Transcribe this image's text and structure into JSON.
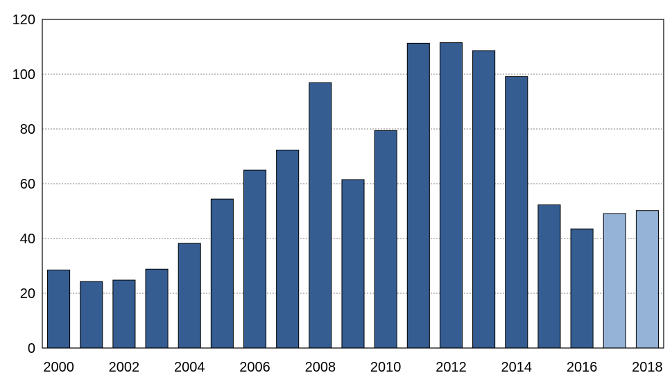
{
  "chart_data": {
    "type": "bar",
    "categories": [
      "2000",
      "2001",
      "2002",
      "2003",
      "2004",
      "2005",
      "2006",
      "2007",
      "2008",
      "2009",
      "2010",
      "2011",
      "2012",
      "2013",
      "2014",
      "2015",
      "2016",
      "2017",
      "2018"
    ],
    "values": [
      28.5,
      24.3,
      24.8,
      28.8,
      38.2,
      54.4,
      65.0,
      72.3,
      96.9,
      61.5,
      79.4,
      111.3,
      111.5,
      108.6,
      99.1,
      52.3,
      43.5,
      49.1,
      50.2
    ],
    "x_tick_labels": [
      "2000",
      "2002",
      "2004",
      "2006",
      "2008",
      "2010",
      "2012",
      "2014",
      "2016",
      "2018"
    ],
    "y_tick_labels": [
      "0",
      "20",
      "40",
      "60",
      "80",
      "100",
      "120"
    ],
    "ylim": [
      0,
      120
    ],
    "title": "",
    "xlabel": "",
    "ylabel": "",
    "grid": "horizontal dashed",
    "legend": "none",
    "colors": {
      "actual": "#355d91",
      "projected": "#95b3d7"
    },
    "projected_from_index": 17
  }
}
